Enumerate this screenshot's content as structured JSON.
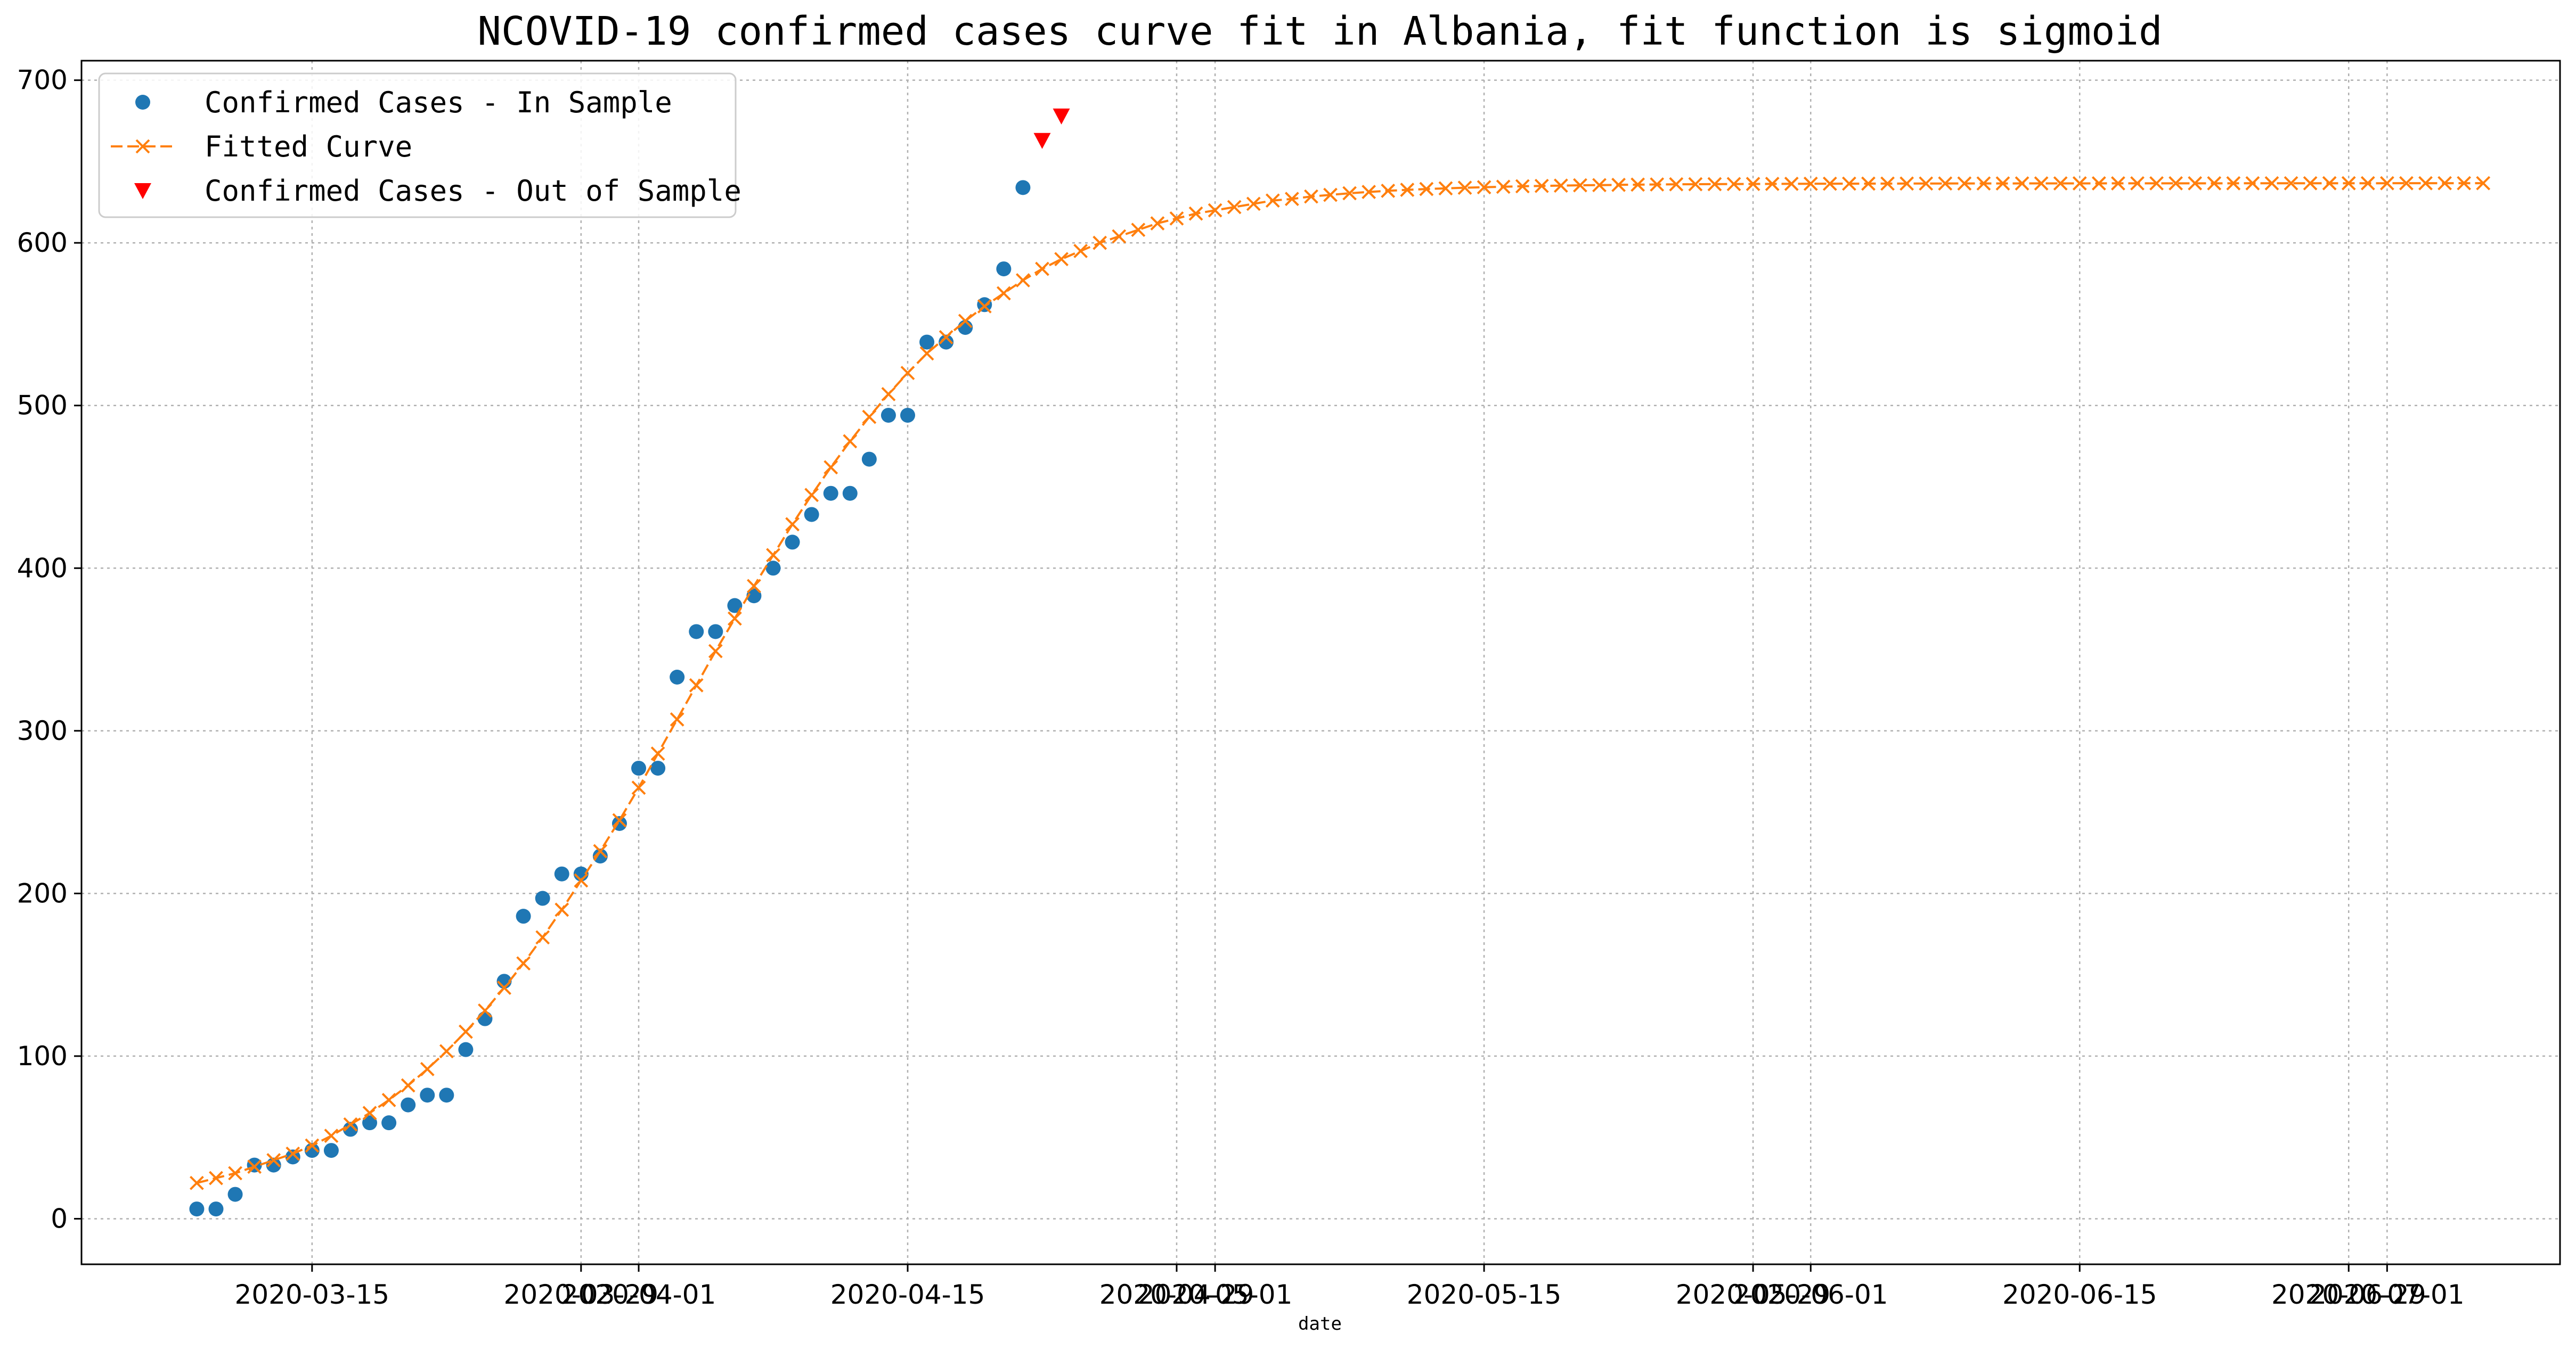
{
  "chart_data": {
    "type": "line",
    "title": "NCOVID-19 confirmed cases curve fit in Albania, fit function is sigmoid",
    "xlabel": "date",
    "ylabel": "",
    "x_axis_type": "date",
    "x_range": [
      "2020-03-03",
      "2020-07-10"
    ],
    "ylim": [
      -28,
      712
    ],
    "grid": true,
    "legend_position": "top-left",
    "x_ticks": [
      {
        "date": "2020-03-15",
        "label": "2020-03-15"
      },
      {
        "date": "2020-03-29",
        "label": "2020-03-29"
      },
      {
        "date": "2020-04-01",
        "label": "2020-04-01"
      },
      {
        "date": "2020-04-15",
        "label": "2020-04-15"
      },
      {
        "date": "2020-04-29",
        "label": "2020-04-29"
      },
      {
        "date": "2020-05-01",
        "label": "2020-05-01"
      },
      {
        "date": "2020-05-15",
        "label": "2020-05-15"
      },
      {
        "date": "2020-05-29",
        "label": "2020-05-29"
      },
      {
        "date": "2020-06-01",
        "label": "2020-06-01"
      },
      {
        "date": "2020-06-15",
        "label": "2020-06-15"
      },
      {
        "date": "2020-06-29",
        "label": "2020-06-29"
      },
      {
        "date": "2020-07-01",
        "label": "2020-07-01"
      }
    ],
    "y_ticks": [
      0,
      100,
      200,
      300,
      400,
      500,
      600,
      700
    ],
    "series": [
      {
        "name": "Confirmed Cases - In Sample",
        "kind": "scatter",
        "marker": "circle",
        "color": "#1f77b4",
        "points": [
          [
            "2020-03-09",
            6
          ],
          [
            "2020-03-10",
            6
          ],
          [
            "2020-03-11",
            15
          ],
          [
            "2020-03-12",
            33
          ],
          [
            "2020-03-13",
            33
          ],
          [
            "2020-03-14",
            38
          ],
          [
            "2020-03-15",
            42
          ],
          [
            "2020-03-16",
            42
          ],
          [
            "2020-03-17",
            55
          ],
          [
            "2020-03-18",
            59
          ],
          [
            "2020-03-19",
            59
          ],
          [
            "2020-03-20",
            70
          ],
          [
            "2020-03-21",
            76
          ],
          [
            "2020-03-22",
            76
          ],
          [
            "2020-03-23",
            104
          ],
          [
            "2020-03-24",
            123
          ],
          [
            "2020-03-25",
            146
          ],
          [
            "2020-03-26",
            186
          ],
          [
            "2020-03-27",
            197
          ],
          [
            "2020-03-28",
            212
          ],
          [
            "2020-03-29",
            212
          ],
          [
            "2020-03-30",
            223
          ],
          [
            "2020-03-31",
            243
          ],
          [
            "2020-04-01",
            277
          ],
          [
            "2020-04-02",
            277
          ],
          [
            "2020-04-03",
            333
          ],
          [
            "2020-04-04",
            361
          ],
          [
            "2020-04-05",
            361
          ],
          [
            "2020-04-06",
            377
          ],
          [
            "2020-04-07",
            383
          ],
          [
            "2020-04-08",
            400
          ],
          [
            "2020-04-09",
            416
          ],
          [
            "2020-04-10",
            433
          ],
          [
            "2020-04-11",
            446
          ],
          [
            "2020-04-12",
            446
          ],
          [
            "2020-04-13",
            467
          ],
          [
            "2020-04-14",
            494
          ],
          [
            "2020-04-15",
            494
          ],
          [
            "2020-04-16",
            539
          ],
          [
            "2020-04-17",
            539
          ],
          [
            "2020-04-18",
            548
          ],
          [
            "2020-04-19",
            562
          ],
          [
            "2020-04-20",
            584
          ],
          [
            "2020-04-21",
            634
          ]
        ]
      },
      {
        "name": "Fitted Curve",
        "kind": "line",
        "marker": "x",
        "linestyle": "dashed",
        "color": "#ff7f0e",
        "x_start": "2020-03-09",
        "x_end": "2020-07-06",
        "values": [
          22,
          25,
          28,
          32,
          36,
          40,
          45,
          51,
          58,
          65,
          73,
          82,
          92,
          103,
          115,
          128,
          142,
          157,
          173,
          190,
          208,
          226,
          245,
          265,
          286,
          307,
          328,
          349,
          369,
          389,
          408,
          427,
          445,
          462,
          478,
          493,
          507,
          520,
          532,
          542,
          552,
          561,
          569,
          577,
          584,
          590,
          595,
          600,
          604,
          608,
          612,
          615,
          618,
          620,
          622,
          624,
          626,
          627,
          628.5,
          629.5,
          630.5,
          631.3,
          632,
          632.6,
          633.1,
          633.5,
          633.9,
          634.2,
          634.5,
          634.8,
          635,
          635.2,
          635.4,
          635.5,
          635.65,
          635.8,
          635.9,
          636,
          636.05,
          636.1,
          636.15,
          636.2,
          636.25,
          636.3,
          636.33,
          636.36,
          636.39,
          636.42,
          636.44,
          636.46,
          636.48,
          636.5,
          636.51,
          636.52,
          636.53,
          636.54,
          636.55,
          636.56,
          636.57,
          636.58,
          636.59,
          636.6,
          636.6,
          636.61,
          636.61,
          636.62,
          636.62,
          636.63,
          636.63,
          636.64,
          636.64,
          636.65,
          636.65,
          636.66,
          636.66,
          636.67,
          636.67,
          636.68,
          636.68,
          636.69
        ]
      },
      {
        "name": "Confirmed Cases - Out of Sample",
        "kind": "scatter",
        "marker": "triangle-down",
        "color": "#ff0000",
        "points": [
          [
            "2020-04-22",
            663
          ],
          [
            "2020-04-23",
            678
          ]
        ]
      }
    ]
  }
}
